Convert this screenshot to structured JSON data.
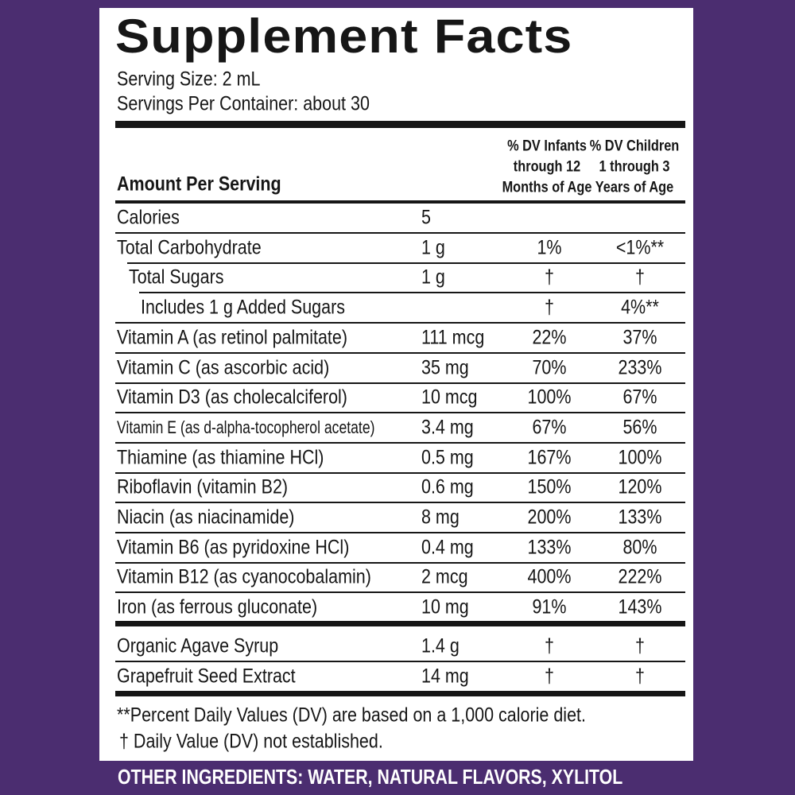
{
  "title": "Supplement Facts",
  "serving_size": "Serving Size: 2 mL",
  "servings_per_container": "Servings Per Container: about 30",
  "header": {
    "amount_per_serving": "Amount Per Serving",
    "dv_infants": [
      "% DV Infants",
      "through 12",
      "Months of Age"
    ],
    "dv_children": [
      "% DV Children",
      "1 through 3",
      "Years of Age"
    ]
  },
  "rows": [
    [
      "Calories",
      "5"
    ],
    [
      "Total Carbohydrate",
      "1 g",
      "1%",
      "<1%**"
    ],
    [
      "Total Sugars",
      "1 g",
      "†",
      "†"
    ],
    [
      "Includes 1 g Added Sugars",
      null,
      "†",
      "4%**"
    ],
    [
      "Vitamin A (as retinol palmitate)",
      "111 mcg",
      "22%",
      "37%"
    ],
    [
      "Vitamin C (as ascorbic acid)",
      "35 mg",
      "70%",
      "233%"
    ],
    [
      "Vitamin D3 (as cholecalciferol)",
      "10 mcg",
      "100%",
      "67%"
    ],
    [
      "Vitamin E (as d-alpha-tocopherol acetate)",
      "3.4 mg",
      "67%",
      "56%"
    ],
    [
      "Thiamine (as thiamine HCl)",
      "0.5 mg",
      "167%",
      "100%"
    ],
    [
      "Riboflavin (vitamin B2)",
      "0.6 mg",
      "150%",
      "120%"
    ],
    [
      "Niacin (as niacinamide)",
      "8 mg",
      "200%",
      "133%"
    ],
    [
      "Vitamin B6 (as pyridoxine HCl)",
      "0.4 mg",
      "133%",
      "80%"
    ],
    [
      "Vitamin B12 (as cyanocobalamin)",
      "2 mcg",
      "400%",
      "222%"
    ],
    [
      "Iron (as ferrous gluconate)",
      "10 mg",
      "91%",
      "143%"
    ]
  ],
  "other_rows": [
    [
      "Organic Agave Syrup",
      "1.4 g",
      "†",
      "†"
    ],
    [
      "Grapefruit Seed Extract",
      "14 mg",
      "†",
      "†"
    ]
  ],
  "footnotes": [
    "**Percent Daily Values (DV) are based on a 1,000 calorie diet.",
    "† Daily Value (DV) not established."
  ],
  "other_ingredients": "OTHER INGREDIENTS: WATER, NATURAL FLAVORS, XYLITOL"
}
